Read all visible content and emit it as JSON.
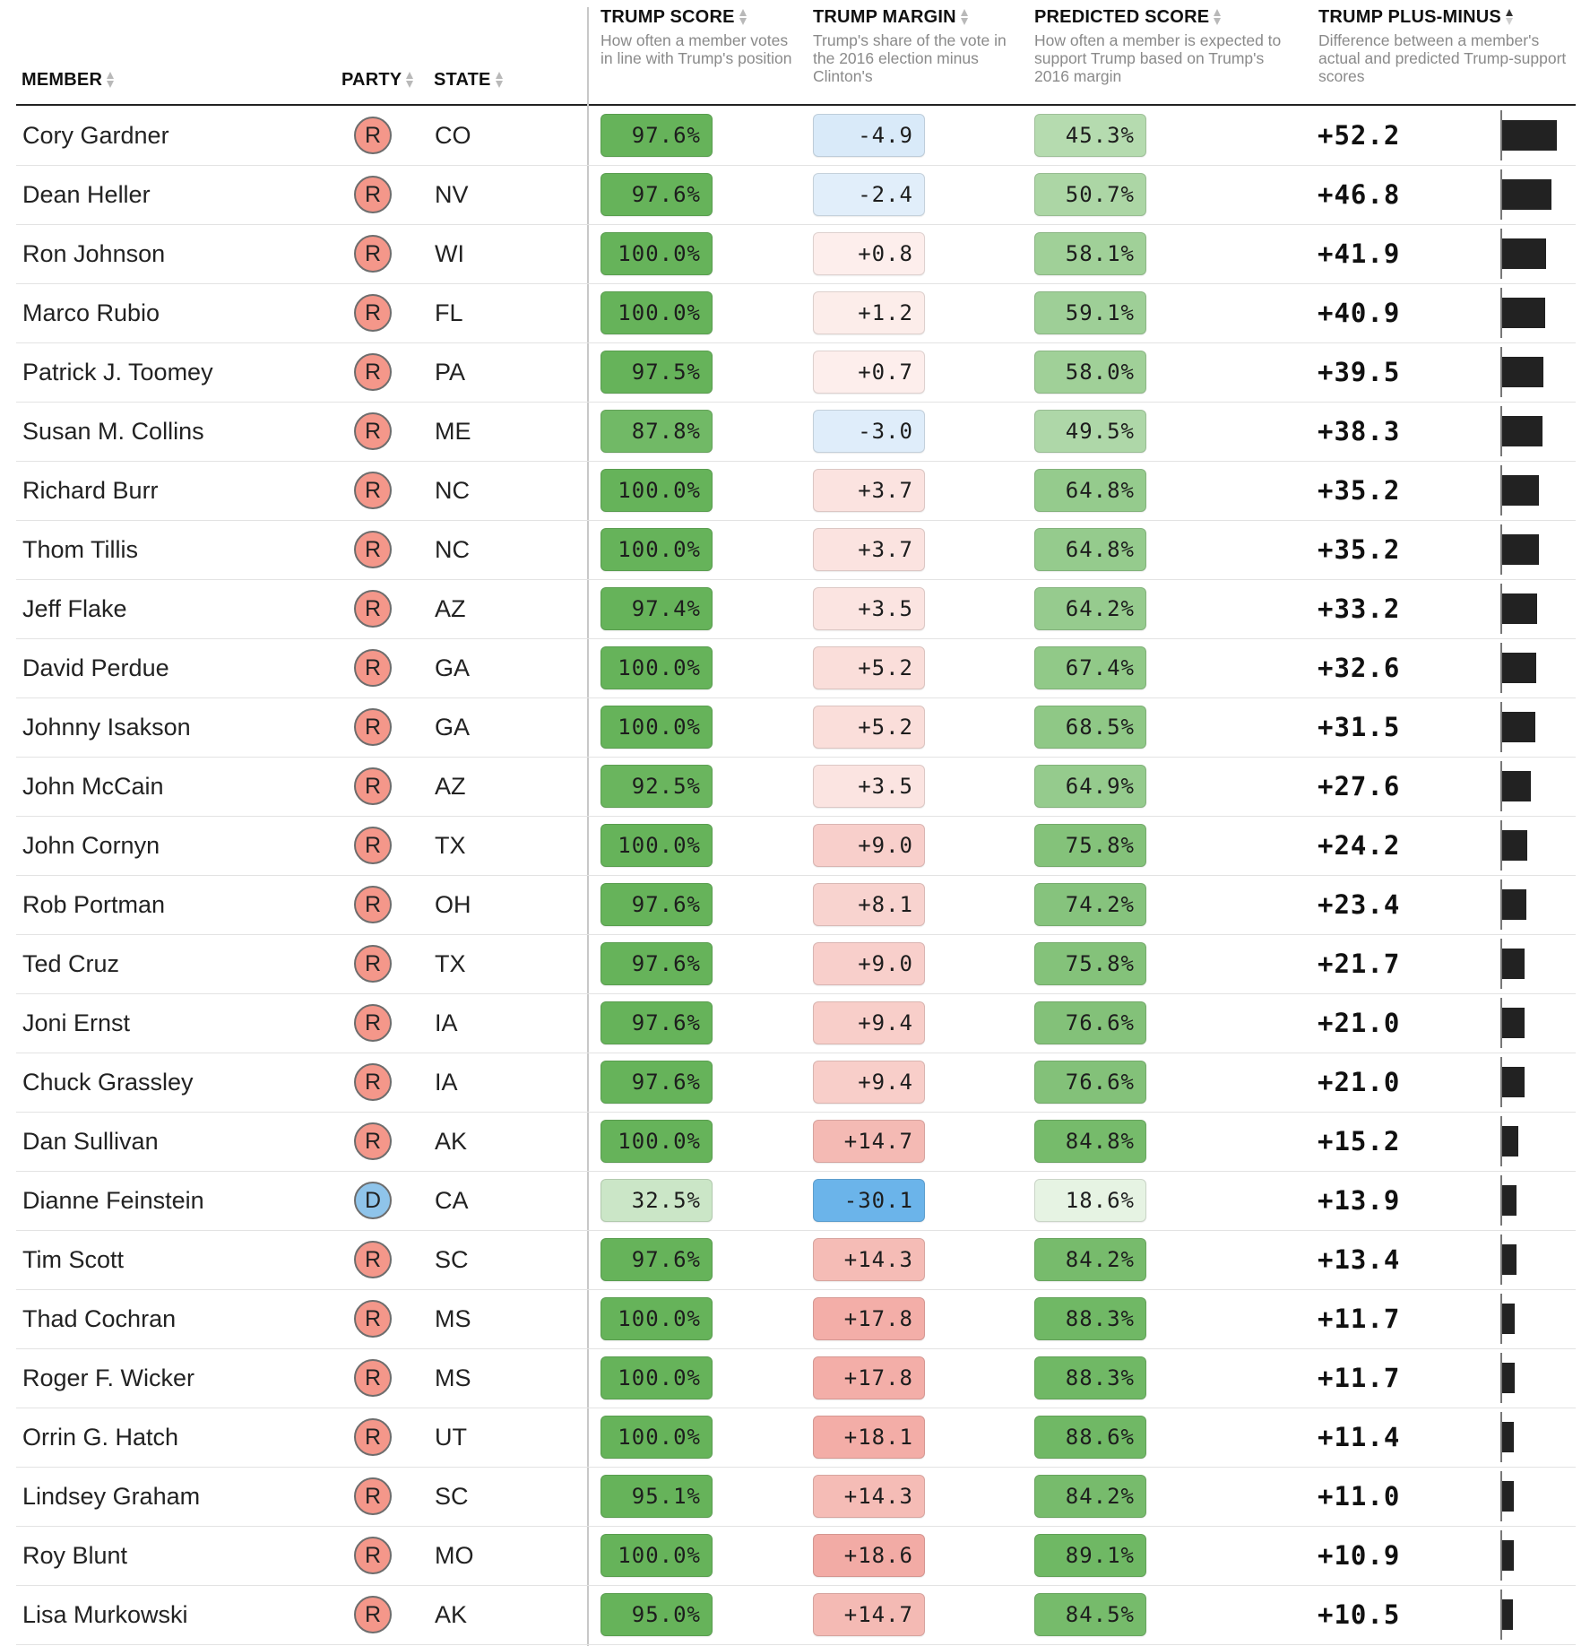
{
  "headers": {
    "member": "MEMBER",
    "party": "PARTY",
    "state": "STATE",
    "trump_score": "TRUMP SCORE",
    "trump_score_desc": "How often a member votes in line with Trump's position",
    "trump_margin": "TRUMP MARGIN",
    "trump_margin_desc": "Trump's share of the vote in the 2016 election minus Clinton's",
    "predicted_score": "PREDICTED SCORE",
    "predicted_score_desc": "How often a member is expected to support Trump based on Trump's 2016 margin",
    "plus_minus": "TRUMP PLUS-MINUS",
    "plus_minus_desc": "Difference between a member's actual and predicted Trump-support scores"
  },
  "colors": {
    "republican_fill": "#f4978a",
    "democrat_fill": "#8fc4ea",
    "bar": "#222222",
    "rule": "#222222"
  },
  "chart_data": {
    "type": "table",
    "plus_minus_max": 52.2,
    "rows": [
      {
        "member": "Cory Gardner",
        "party": "R",
        "state": "CO",
        "trump_score": "97.6%",
        "trump_margin": "-4.9",
        "predicted_score": "45.3%",
        "plus_minus": "+52.2",
        "score_v": 97.6,
        "margin_v": -4.9,
        "pred_v": 45.3,
        "pm_v": 52.2
      },
      {
        "member": "Dean Heller",
        "party": "R",
        "state": "NV",
        "trump_score": "97.6%",
        "trump_margin": "-2.4",
        "predicted_score": "50.7%",
        "plus_minus": "+46.8",
        "score_v": 97.6,
        "margin_v": -2.4,
        "pred_v": 50.7,
        "pm_v": 46.8
      },
      {
        "member": "Ron Johnson",
        "party": "R",
        "state": "WI",
        "trump_score": "100.0%",
        "trump_margin": "+0.8",
        "predicted_score": "58.1%",
        "plus_minus": "+41.9",
        "score_v": 100.0,
        "margin_v": 0.8,
        "pred_v": 58.1,
        "pm_v": 41.9
      },
      {
        "member": "Marco Rubio",
        "party": "R",
        "state": "FL",
        "trump_score": "100.0%",
        "trump_margin": "+1.2",
        "predicted_score": "59.1%",
        "plus_minus": "+40.9",
        "score_v": 100.0,
        "margin_v": 1.2,
        "pred_v": 59.1,
        "pm_v": 40.9
      },
      {
        "member": "Patrick J. Toomey",
        "party": "R",
        "state": "PA",
        "trump_score": "97.5%",
        "trump_margin": "+0.7",
        "predicted_score": "58.0%",
        "plus_minus": "+39.5",
        "score_v": 97.5,
        "margin_v": 0.7,
        "pred_v": 58.0,
        "pm_v": 39.5
      },
      {
        "member": "Susan M. Collins",
        "party": "R",
        "state": "ME",
        "trump_score": "87.8%",
        "trump_margin": "-3.0",
        "predicted_score": "49.5%",
        "plus_minus": "+38.3",
        "score_v": 87.8,
        "margin_v": -3.0,
        "pred_v": 49.5,
        "pm_v": 38.3
      },
      {
        "member": "Richard Burr",
        "party": "R",
        "state": "NC",
        "trump_score": "100.0%",
        "trump_margin": "+3.7",
        "predicted_score": "64.8%",
        "plus_minus": "+35.2",
        "score_v": 100.0,
        "margin_v": 3.7,
        "pred_v": 64.8,
        "pm_v": 35.2
      },
      {
        "member": "Thom Tillis",
        "party": "R",
        "state": "NC",
        "trump_score": "100.0%",
        "trump_margin": "+3.7",
        "predicted_score": "64.8%",
        "plus_minus": "+35.2",
        "score_v": 100.0,
        "margin_v": 3.7,
        "pred_v": 64.8,
        "pm_v": 35.2
      },
      {
        "member": "Jeff Flake",
        "party": "R",
        "state": "AZ",
        "trump_score": "97.4%",
        "trump_margin": "+3.5",
        "predicted_score": "64.2%",
        "plus_minus": "+33.2",
        "score_v": 97.4,
        "margin_v": 3.5,
        "pred_v": 64.2,
        "pm_v": 33.2
      },
      {
        "member": "David Perdue",
        "party": "R",
        "state": "GA",
        "trump_score": "100.0%",
        "trump_margin": "+5.2",
        "predicted_score": "67.4%",
        "plus_minus": "+32.6",
        "score_v": 100.0,
        "margin_v": 5.2,
        "pred_v": 67.4,
        "pm_v": 32.6
      },
      {
        "member": "Johnny Isakson",
        "party": "R",
        "state": "GA",
        "trump_score": "100.0%",
        "trump_margin": "+5.2",
        "predicted_score": "68.5%",
        "plus_minus": "+31.5",
        "score_v": 100.0,
        "margin_v": 5.2,
        "pred_v": 68.5,
        "pm_v": 31.5
      },
      {
        "member": "John McCain",
        "party": "R",
        "state": "AZ",
        "trump_score": "92.5%",
        "trump_margin": "+3.5",
        "predicted_score": "64.9%",
        "plus_minus": "+27.6",
        "score_v": 92.5,
        "margin_v": 3.5,
        "pred_v": 64.9,
        "pm_v": 27.6
      },
      {
        "member": "John Cornyn",
        "party": "R",
        "state": "TX",
        "trump_score": "100.0%",
        "trump_margin": "+9.0",
        "predicted_score": "75.8%",
        "plus_minus": "+24.2",
        "score_v": 100.0,
        "margin_v": 9.0,
        "pred_v": 75.8,
        "pm_v": 24.2
      },
      {
        "member": "Rob Portman",
        "party": "R",
        "state": "OH",
        "trump_score": "97.6%",
        "trump_margin": "+8.1",
        "predicted_score": "74.2%",
        "plus_minus": "+23.4",
        "score_v": 97.6,
        "margin_v": 8.1,
        "pred_v": 74.2,
        "pm_v": 23.4
      },
      {
        "member": "Ted Cruz",
        "party": "R",
        "state": "TX",
        "trump_score": "97.6%",
        "trump_margin": "+9.0",
        "predicted_score": "75.8%",
        "plus_minus": "+21.7",
        "score_v": 97.6,
        "margin_v": 9.0,
        "pred_v": 75.8,
        "pm_v": 21.7
      },
      {
        "member": "Joni Ernst",
        "party": "R",
        "state": "IA",
        "trump_score": "97.6%",
        "trump_margin": "+9.4",
        "predicted_score": "76.6%",
        "plus_minus": "+21.0",
        "score_v": 97.6,
        "margin_v": 9.4,
        "pred_v": 76.6,
        "pm_v": 21.0
      },
      {
        "member": "Chuck Grassley",
        "party": "R",
        "state": "IA",
        "trump_score": "97.6%",
        "trump_margin": "+9.4",
        "predicted_score": "76.6%",
        "plus_minus": "+21.0",
        "score_v": 97.6,
        "margin_v": 9.4,
        "pred_v": 76.6,
        "pm_v": 21.0
      },
      {
        "member": "Dan Sullivan",
        "party": "R",
        "state": "AK",
        "trump_score": "100.0%",
        "trump_margin": "+14.7",
        "predicted_score": "84.8%",
        "plus_minus": "+15.2",
        "score_v": 100.0,
        "margin_v": 14.7,
        "pred_v": 84.8,
        "pm_v": 15.2
      },
      {
        "member": "Dianne Feinstein",
        "party": "D",
        "state": "CA",
        "trump_score": "32.5%",
        "trump_margin": "-30.1",
        "predicted_score": "18.6%",
        "plus_minus": "+13.9",
        "score_v": 32.5,
        "margin_v": -30.1,
        "pred_v": 18.6,
        "pm_v": 13.9
      },
      {
        "member": "Tim Scott",
        "party": "R",
        "state": "SC",
        "trump_score": "97.6%",
        "trump_margin": "+14.3",
        "predicted_score": "84.2%",
        "plus_minus": "+13.4",
        "score_v": 97.6,
        "margin_v": 14.3,
        "pred_v": 84.2,
        "pm_v": 13.4
      },
      {
        "member": "Thad Cochran",
        "party": "R",
        "state": "MS",
        "trump_score": "100.0%",
        "trump_margin": "+17.8",
        "predicted_score": "88.3%",
        "plus_minus": "+11.7",
        "score_v": 100.0,
        "margin_v": 17.8,
        "pred_v": 88.3,
        "pm_v": 11.7
      },
      {
        "member": "Roger F. Wicker",
        "party": "R",
        "state": "MS",
        "trump_score": "100.0%",
        "trump_margin": "+17.8",
        "predicted_score": "88.3%",
        "plus_minus": "+11.7",
        "score_v": 100.0,
        "margin_v": 17.8,
        "pred_v": 88.3,
        "pm_v": 11.7
      },
      {
        "member": "Orrin G. Hatch",
        "party": "R",
        "state": "UT",
        "trump_score": "100.0%",
        "trump_margin": "+18.1",
        "predicted_score": "88.6%",
        "plus_minus": "+11.4",
        "score_v": 100.0,
        "margin_v": 18.1,
        "pred_v": 88.6,
        "pm_v": 11.4
      },
      {
        "member": "Lindsey Graham",
        "party": "R",
        "state": "SC",
        "trump_score": "95.1%",
        "trump_margin": "+14.3",
        "predicted_score": "84.2%",
        "plus_minus": "+11.0",
        "score_v": 95.1,
        "margin_v": 14.3,
        "pred_v": 84.2,
        "pm_v": 11.0
      },
      {
        "member": "Roy Blunt",
        "party": "R",
        "state": "MO",
        "trump_score": "100.0%",
        "trump_margin": "+18.6",
        "predicted_score": "89.1%",
        "plus_minus": "+10.9",
        "score_v": 100.0,
        "margin_v": 18.6,
        "pred_v": 89.1,
        "pm_v": 10.9
      },
      {
        "member": "Lisa Murkowski",
        "party": "R",
        "state": "AK",
        "trump_score": "95.0%",
        "trump_margin": "+14.7",
        "predicted_score": "84.5%",
        "plus_minus": "+10.5",
        "score_v": 95.0,
        "margin_v": 14.7,
        "pred_v": 84.5,
        "pm_v": 10.5
      }
    ]
  }
}
